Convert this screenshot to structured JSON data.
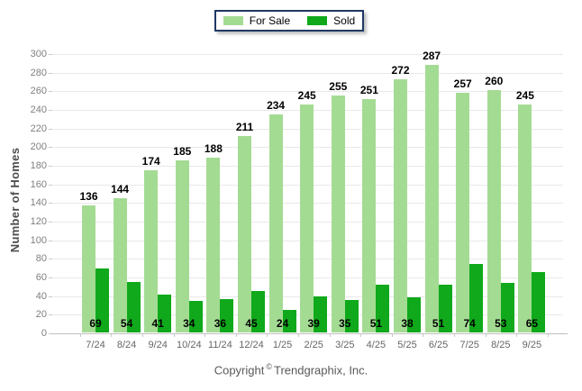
{
  "legend": {
    "items": [
      {
        "label": "For Sale",
        "color": "#A4DB93"
      },
      {
        "label": "Sold",
        "color": "#0FA91B"
      }
    ],
    "border_color": "#1F3864"
  },
  "y_axis": {
    "title": "Number of Homes"
  },
  "footer": {
    "copyright_prefix": "Copyright",
    "copyright_symbol": "©",
    "copyright_company": "Trendgraphix, Inc."
  },
  "chart_data": {
    "type": "bar",
    "categories": [
      "7/24",
      "8/24",
      "9/24",
      "10/24",
      "11/24",
      "12/24",
      "1/25",
      "2/25",
      "3/25",
      "4/25",
      "5/25",
      "6/25",
      "7/25",
      "8/25",
      "9/25"
    ],
    "series": [
      {
        "name": "For Sale",
        "color": "#A4DB93",
        "values": [
          136,
          144,
          174,
          185,
          188,
          211,
          234,
          245,
          255,
          251,
          272,
          287,
          257,
          260,
          245
        ]
      },
      {
        "name": "Sold",
        "color": "#0FA91B",
        "values": [
          69,
          54,
          41,
          34,
          36,
          45,
          24,
          39,
          35,
          51,
          38,
          51,
          74,
          53,
          65
        ]
      }
    ],
    "title": "",
    "xlabel": "",
    "ylabel": "Number of Homes",
    "ylim": [
      0,
      300
    ],
    "ytick_step": 20,
    "grid": true,
    "legend_position": "top-center",
    "value_label_placement": {
      "For Sale": "above bar",
      "Sold": "at bar base inside"
    }
  }
}
